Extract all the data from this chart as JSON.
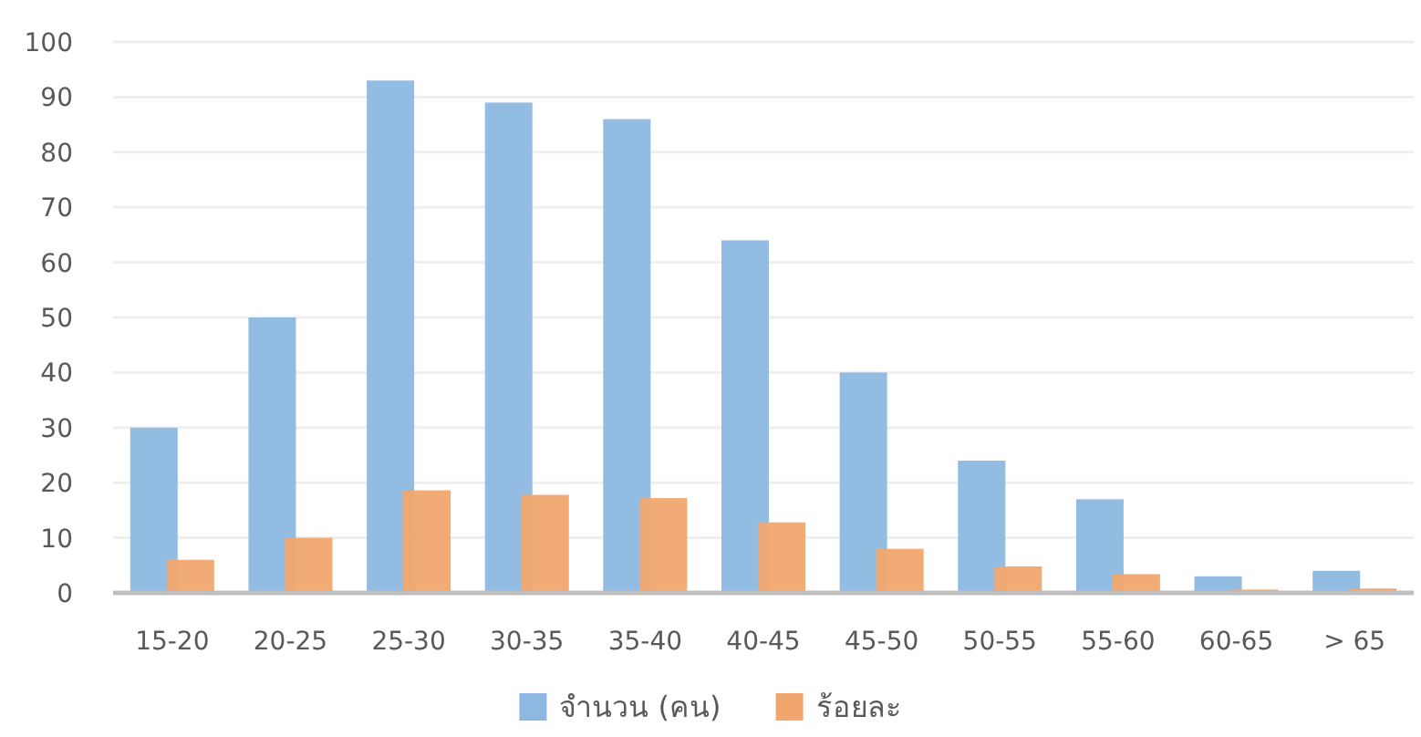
{
  "chart_data": {
    "type": "bar",
    "categories": [
      "15-20",
      "20-25",
      "25-30",
      "30-35",
      "35-40",
      "40-45",
      "45-50",
      "50-55",
      "55-60",
      "60-65",
      "> 65"
    ],
    "series": [
      {
        "name": "จำนวน (คน)",
        "color": "#8db8e1",
        "values": [
          30,
          50,
          93,
          89,
          86,
          64,
          40,
          24,
          17,
          3,
          4
        ]
      },
      {
        "name": "ร้อยละ",
        "color": "#f1a66d",
        "values": [
          6,
          10,
          18.6,
          17.8,
          17.2,
          12.8,
          8,
          4.8,
          3.4,
          0.6,
          0.8
        ]
      }
    ],
    "ylim": [
      0,
      100
    ],
    "yticks": [
      0,
      10,
      20,
      30,
      40,
      50,
      60,
      70,
      80,
      90,
      100
    ],
    "grid": "y",
    "legend": "bottom"
  }
}
